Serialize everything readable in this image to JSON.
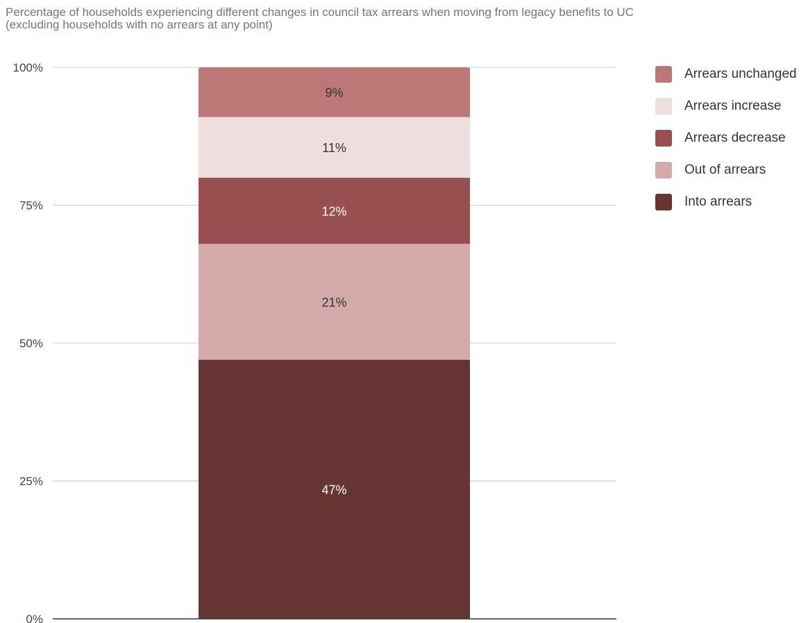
{
  "chart_data": {
    "type": "bar",
    "stacked": true,
    "title": "Percentage of households experiencing different changes in council tax arrears when moving from legacy benefits to UC",
    "subtitle": "(excluding households with no arrears at any point)",
    "xlabel": "",
    "ylabel": "",
    "categories": [
      ""
    ],
    "ylim": [
      0,
      100
    ],
    "yticks": [
      0,
      25,
      50,
      75,
      100
    ],
    "ytick_labels": [
      "0%",
      "25%",
      "50%",
      "75%",
      "100%"
    ],
    "grid": true,
    "legend_position": "right",
    "series": [
      {
        "name": "Into arrears",
        "values": [
          47
        ],
        "label": "47%",
        "color": "#673434",
        "label_color": "#ffffff"
      },
      {
        "name": "Out of arrears",
        "values": [
          21
        ],
        "label": "21%",
        "color": "#d4a9a9",
        "label_color": "#333333"
      },
      {
        "name": "Arrears decrease",
        "values": [
          12
        ],
        "label": "12%",
        "color": "#974f4f",
        "label_color": "#ffffff"
      },
      {
        "name": "Arrears increase",
        "values": [
          11
        ],
        "label": "11%",
        "color": "#efdede",
        "label_color": "#333333"
      },
      {
        "name": "Arrears unchanged",
        "values": [
          9
        ],
        "label": "9%",
        "color": "#bb7877",
        "label_color": "#333333"
      }
    ],
    "legend_order": [
      "Arrears unchanged",
      "Arrears increase",
      "Arrears decrease",
      "Out of arrears",
      "Into arrears"
    ]
  }
}
